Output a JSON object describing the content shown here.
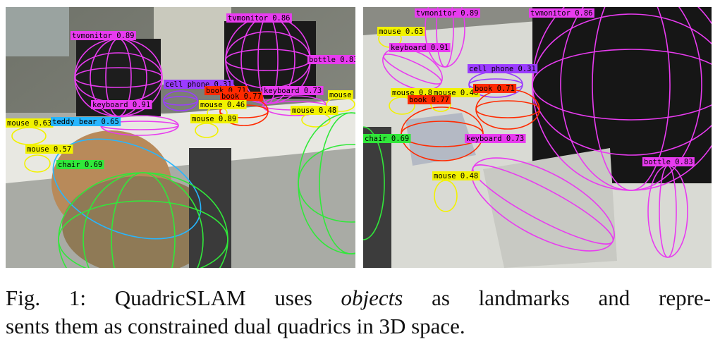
{
  "figure": {
    "panels": [
      {
        "id": "left",
        "detections": [
          {
            "text": "tvmonitor 0.89",
            "color": "#e83bf0"
          },
          {
            "text": "tvmonitor 0.86",
            "color": "#e83bf0"
          },
          {
            "text": "bottle 0.83",
            "color": "#e83bf0"
          },
          {
            "text": "cell phone 0.31",
            "color": "#9b3cff"
          },
          {
            "text": "book 0.71",
            "color": "#ff2a00"
          },
          {
            "text": "book 0.77",
            "color": "#ff2a00"
          },
          {
            "text": "keyboard 0.73",
            "color": "#e83bf0"
          },
          {
            "text": "mouse 0.46",
            "color": "#f2f200"
          },
          {
            "text": "mouse",
            "color": "#f2f200"
          },
          {
            "text": "keyboard 0.91",
            "color": "#e83bf0"
          },
          {
            "text": "mouse 0.48",
            "color": "#f2f200"
          },
          {
            "text": "mouse 0.89",
            "color": "#f2f200"
          },
          {
            "text": "mouse 0.63",
            "color": "#f2f200"
          },
          {
            "text": "teddy bear 0.65",
            "color": "#27b6ff"
          },
          {
            "text": "mouse 0.57",
            "color": "#f2f200"
          },
          {
            "text": "chair 0.69",
            "color": "#31e83a"
          }
        ]
      },
      {
        "id": "right",
        "detections": [
          {
            "text": "tvmonitor 0.89",
            "color": "#e83bf0"
          },
          {
            "text": "tvmonitor 0.86",
            "color": "#e83bf0"
          },
          {
            "text": "mouse 0.63",
            "color": "#f2f200"
          },
          {
            "text": "keyboard 0.91",
            "color": "#e83bf0"
          },
          {
            "text": "cell phone 0.31",
            "color": "#9b3cff"
          },
          {
            "text": "mouse 0.89",
            "color": "#f2f200"
          },
          {
            "text": "mouse 0.46",
            "color": "#f2f200"
          },
          {
            "text": "book 0.71",
            "color": "#ff2a00"
          },
          {
            "text": "book 0.77",
            "color": "#ff2a00"
          },
          {
            "text": "chair 0.69",
            "color": "#31e83a"
          },
          {
            "text": "keyboard 0.73",
            "color": "#e83bf0"
          },
          {
            "text": "mouse 0.48",
            "color": "#f2f200"
          },
          {
            "text": "bottle 0.83",
            "color": "#e83bf0"
          }
        ]
      }
    ]
  },
  "caption": {
    "prefix": "Fig. 1: QuadricSLAM uses ",
    "emph": "objects",
    "line1_rest": " as landmarks and repre-",
    "line2": "sents them as constrained dual quadrics in 3D space."
  }
}
